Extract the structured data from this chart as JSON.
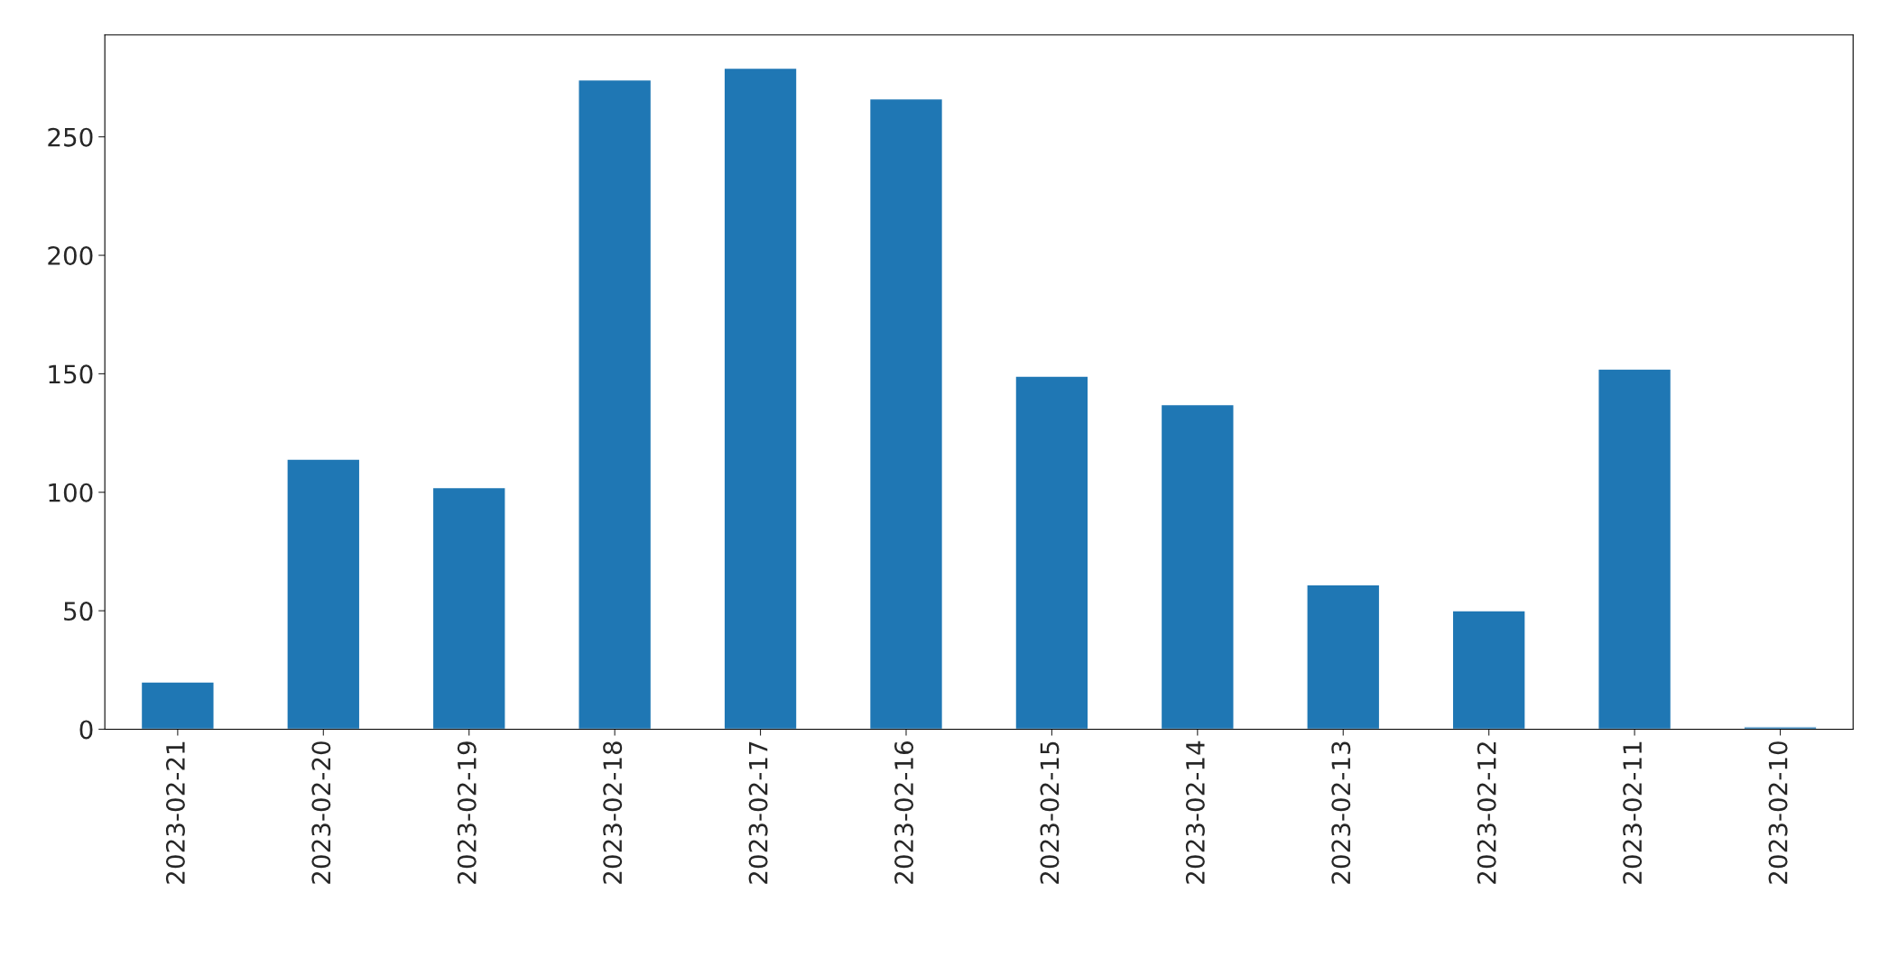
{
  "chart_data": {
    "type": "bar",
    "categories": [
      "2023-02-21",
      "2023-02-20",
      "2023-02-19",
      "2023-02-18",
      "2023-02-17",
      "2023-02-16",
      "2023-02-15",
      "2023-02-14",
      "2023-02-13",
      "2023-02-12",
      "2023-02-11",
      "2023-02-10"
    ],
    "values": [
      20,
      114,
      102,
      274,
      279,
      266,
      149,
      137,
      61,
      50,
      152,
      1
    ],
    "color": "#1f77b4",
    "ylim": [
      0,
      293
    ],
    "yticks": [
      0,
      50,
      100,
      150,
      200,
      250
    ],
    "grid": false,
    "legend": false
  }
}
